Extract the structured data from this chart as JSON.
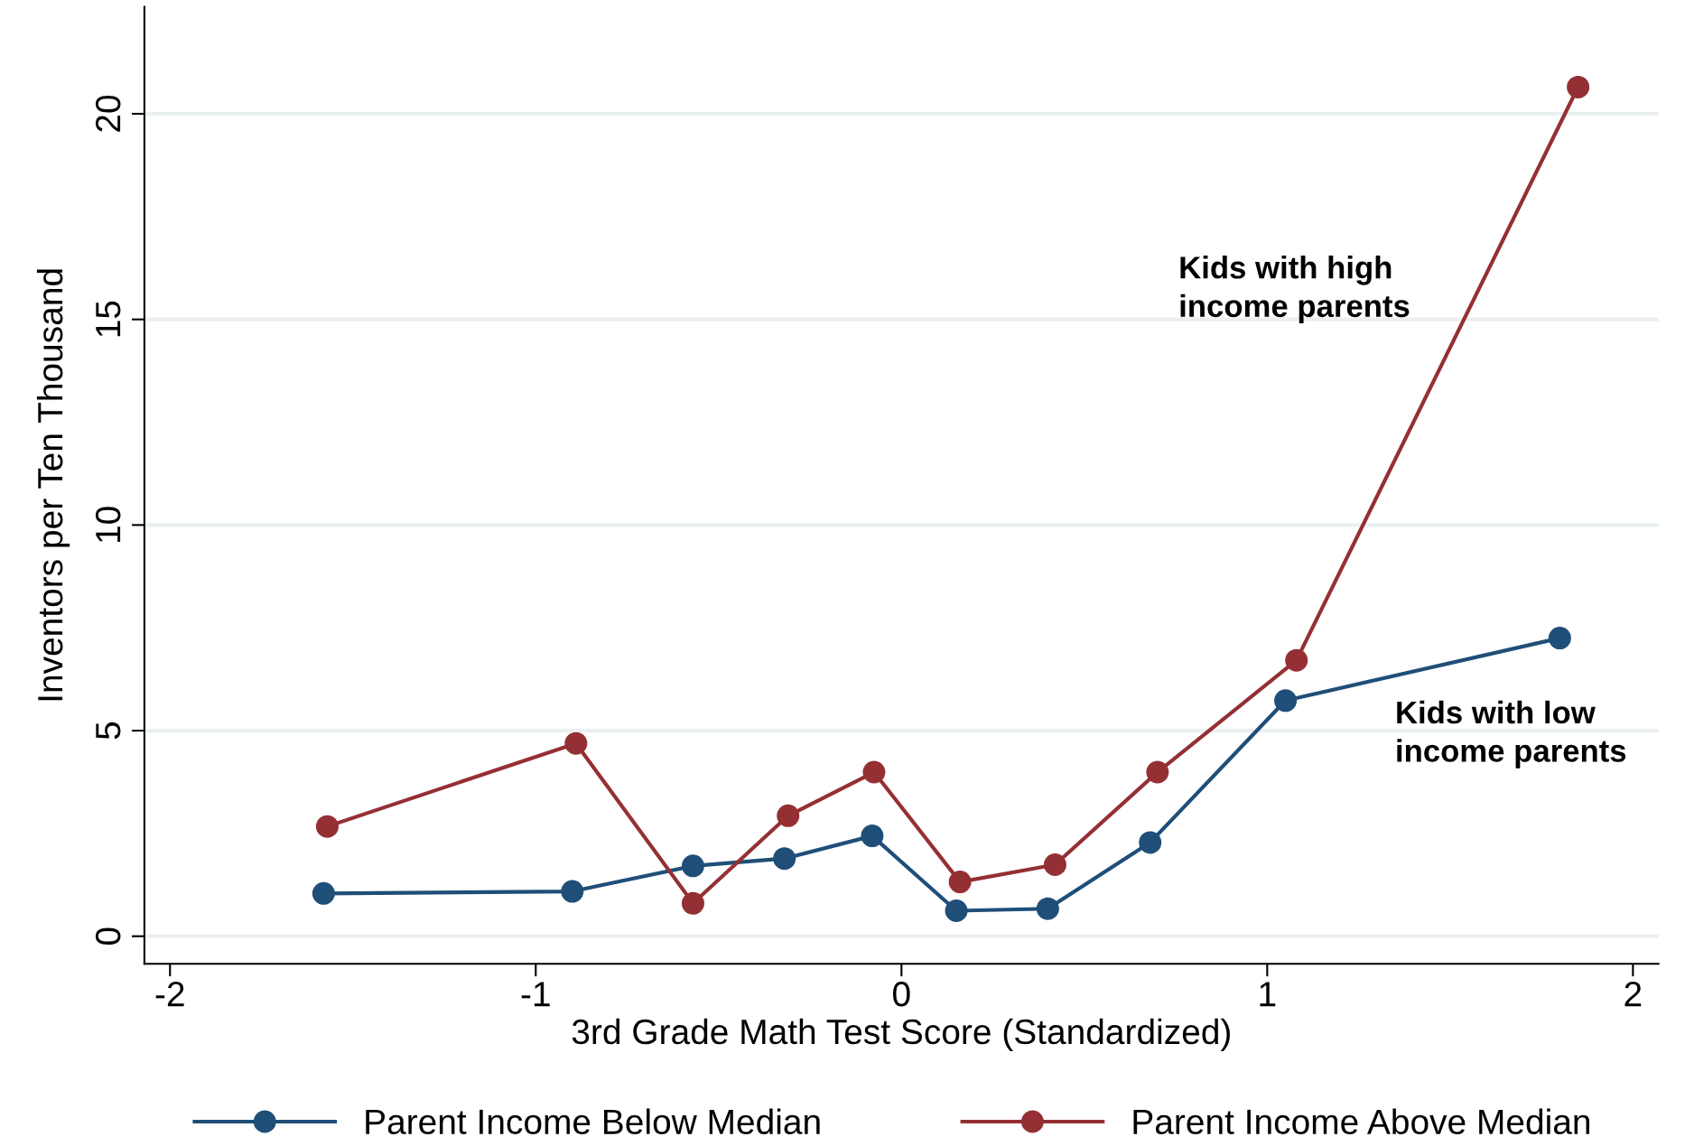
{
  "chart_data": {
    "type": "line",
    "xlabel": "3rd Grade Math Test Score (Standardized)",
    "ylabel": "Inventors per Ten Thousand",
    "xlim": [
      -2.07,
      2.07
    ],
    "ylim": [
      -0.67,
      22.6
    ],
    "xticks": [
      -2,
      -1,
      0,
      1,
      2
    ],
    "yticks": [
      0,
      5,
      10,
      15,
      20
    ],
    "grid": "y",
    "legend": "bottom",
    "marker": "circle",
    "line_style": "solid",
    "series": [
      {
        "name": "Parent Income Below Median",
        "color": "#1f4e79",
        "x": [
          -1.58,
          -0.9,
          -0.57,
          -0.32,
          -0.08,
          0.15,
          0.4,
          0.68,
          1.05,
          1.8
        ],
        "values": [
          1.04,
          1.09,
          1.71,
          1.89,
          2.44,
          0.62,
          0.67,
          2.28,
          5.73,
          7.25
        ]
      },
      {
        "name": "Parent Income Above Median",
        "color": "#943034",
        "x": [
          -1.57,
          -0.89,
          -0.57,
          -0.31,
          -0.075,
          0.16,
          0.42,
          0.7,
          1.08,
          1.85
        ],
        "values": [
          2.67,
          4.69,
          0.8,
          2.93,
          3.99,
          1.32,
          1.74,
          3.99,
          6.71,
          20.65
        ]
      }
    ],
    "annotations": [
      "Kids with high\nincome parents",
      "Kids with low\nincome parents"
    ]
  }
}
